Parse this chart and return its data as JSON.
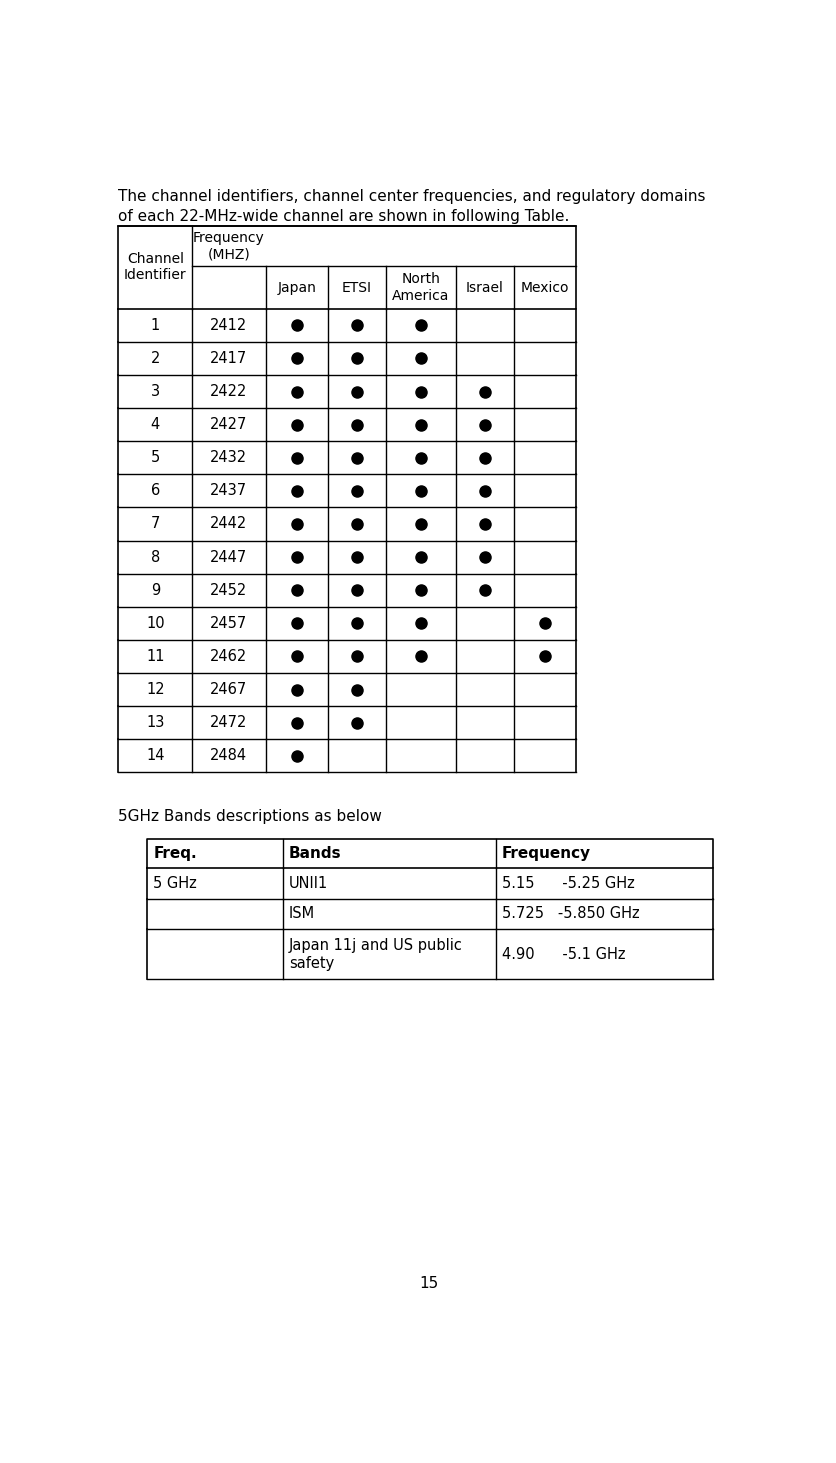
{
  "intro_text_line1": "The channel identifiers, channel center frequencies, and regulatory domains",
  "intro_text_line2": "of each 22-MHz-wide channel are shown in following Table.",
  "page_number": "15",
  "table1": {
    "channels": [
      1,
      2,
      3,
      4,
      5,
      6,
      7,
      8,
      9,
      10,
      11,
      12,
      13,
      14
    ],
    "frequencies": [
      2412,
      2417,
      2422,
      2427,
      2432,
      2437,
      2442,
      2447,
      2452,
      2457,
      2462,
      2467,
      2472,
      2484
    ],
    "japan": [
      1,
      1,
      1,
      1,
      1,
      1,
      1,
      1,
      1,
      1,
      1,
      1,
      1,
      1
    ],
    "etsi": [
      1,
      1,
      1,
      1,
      1,
      1,
      1,
      1,
      1,
      1,
      1,
      1,
      1,
      0
    ],
    "north_america": [
      1,
      1,
      1,
      1,
      1,
      1,
      1,
      1,
      1,
      1,
      1,
      0,
      0,
      0
    ],
    "israel": [
      0,
      0,
      1,
      1,
      1,
      1,
      1,
      1,
      1,
      0,
      0,
      0,
      0,
      0
    ],
    "mexico": [
      0,
      0,
      0,
      0,
      0,
      0,
      0,
      0,
      0,
      1,
      1,
      0,
      0,
      0
    ]
  },
  "section2_title": "5GHz Bands descriptions as below",
  "table2": {
    "headers": [
      "Freq.",
      "Bands",
      "Frequency"
    ],
    "rows": [
      [
        "5 GHz",
        "UNII1",
        "5.15      -5.25 GHz"
      ],
      [
        "",
        "ISM",
        "5.725   -5.850 GHz"
      ],
      [
        "",
        "Japan 11j and US public\nsafety",
        "4.90      -5.1 GHz"
      ]
    ]
  },
  "bg_color": "#ffffff",
  "text_color": "#000000",
  "font_family": "DejaVu Sans"
}
